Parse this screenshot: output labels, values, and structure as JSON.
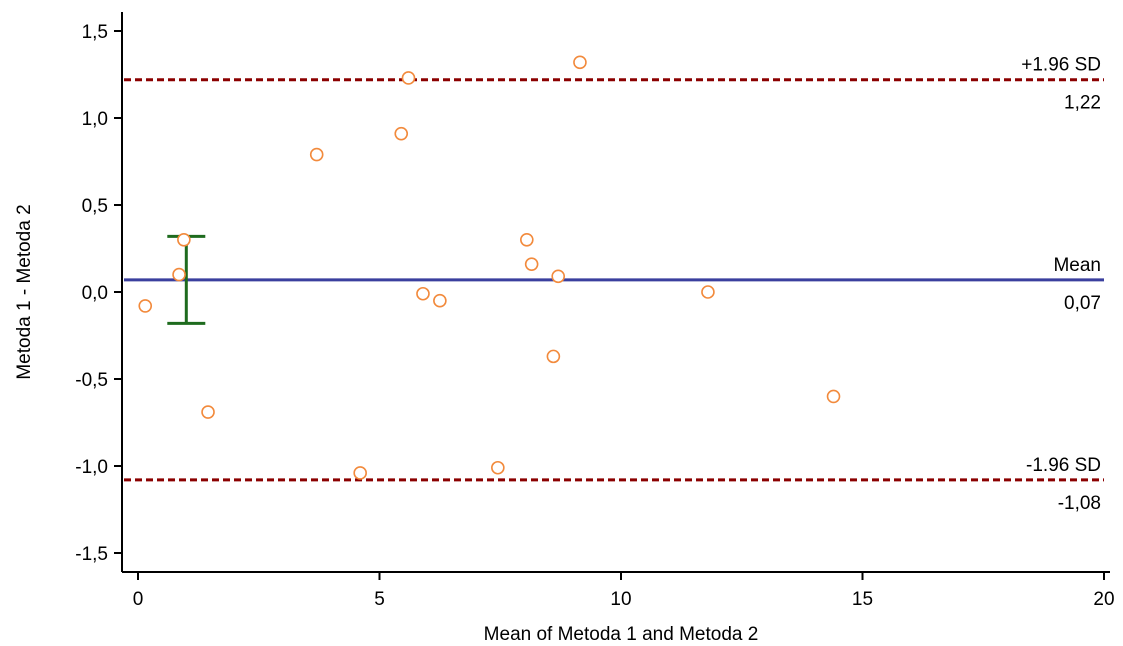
{
  "chart_data": {
    "type": "scatter",
    "title": "",
    "xlabel": "Mean of Metoda 1 and Metoda 2",
    "ylabel": "Metoda 1 - Metoda 2",
    "xlim": [
      0,
      20
    ],
    "ylim": [
      -1.5,
      1.5
    ],
    "x_ticks": [
      0,
      5,
      10,
      15,
      20
    ],
    "y_ticks": [
      1.5,
      1.0,
      0.5,
      0.0,
      -0.5,
      -1.0,
      -1.5
    ],
    "x_tick_labels": [
      "0",
      "5",
      "10",
      "15",
      "20"
    ],
    "y_tick_labels": [
      "1,5",
      "1,0",
      "0,5",
      "0,0",
      "-0,5",
      "-1,0",
      "-1,5"
    ],
    "grid": false,
    "points": [
      {
        "x": 0.15,
        "y": -0.08
      },
      {
        "x": 0.85,
        "y": 0.1
      },
      {
        "x": 0.95,
        "y": 0.3
      },
      {
        "x": 1.45,
        "y": -0.69
      },
      {
        "x": 3.7,
        "y": 0.79
      },
      {
        "x": 4.6,
        "y": -1.04
      },
      {
        "x": 5.45,
        "y": 0.91
      },
      {
        "x": 5.6,
        "y": 1.23
      },
      {
        "x": 5.9,
        "y": -0.01
      },
      {
        "x": 6.25,
        "y": -0.05
      },
      {
        "x": 7.45,
        "y": -1.01
      },
      {
        "x": 8.05,
        "y": 0.3
      },
      {
        "x": 8.15,
        "y": 0.16
      },
      {
        "x": 8.6,
        "y": -0.37
      },
      {
        "x": 8.7,
        "y": 0.09
      },
      {
        "x": 9.15,
        "y": 1.32
      },
      {
        "x": 11.8,
        "y": 0.0
      },
      {
        "x": 14.4,
        "y": -0.6
      }
    ],
    "reference_lines": [
      {
        "name": "+1.96 SD",
        "value": 1.22,
        "value_label": "1,22",
        "color": "#8b0000",
        "style": "dashed"
      },
      {
        "name": "Mean",
        "value": 0.07,
        "value_label": "0,07",
        "color": "#3a3f9e",
        "style": "solid"
      },
      {
        "name": "-1.96 SD",
        "value": -1.08,
        "value_label": "-1,08",
        "color": "#8b0000",
        "style": "dashed"
      }
    ],
    "mean_ci": {
      "x": 1.0,
      "lower": -0.18,
      "upper": 0.32,
      "color": "#1e6b1e"
    },
    "point_color": "#f28a3c"
  }
}
